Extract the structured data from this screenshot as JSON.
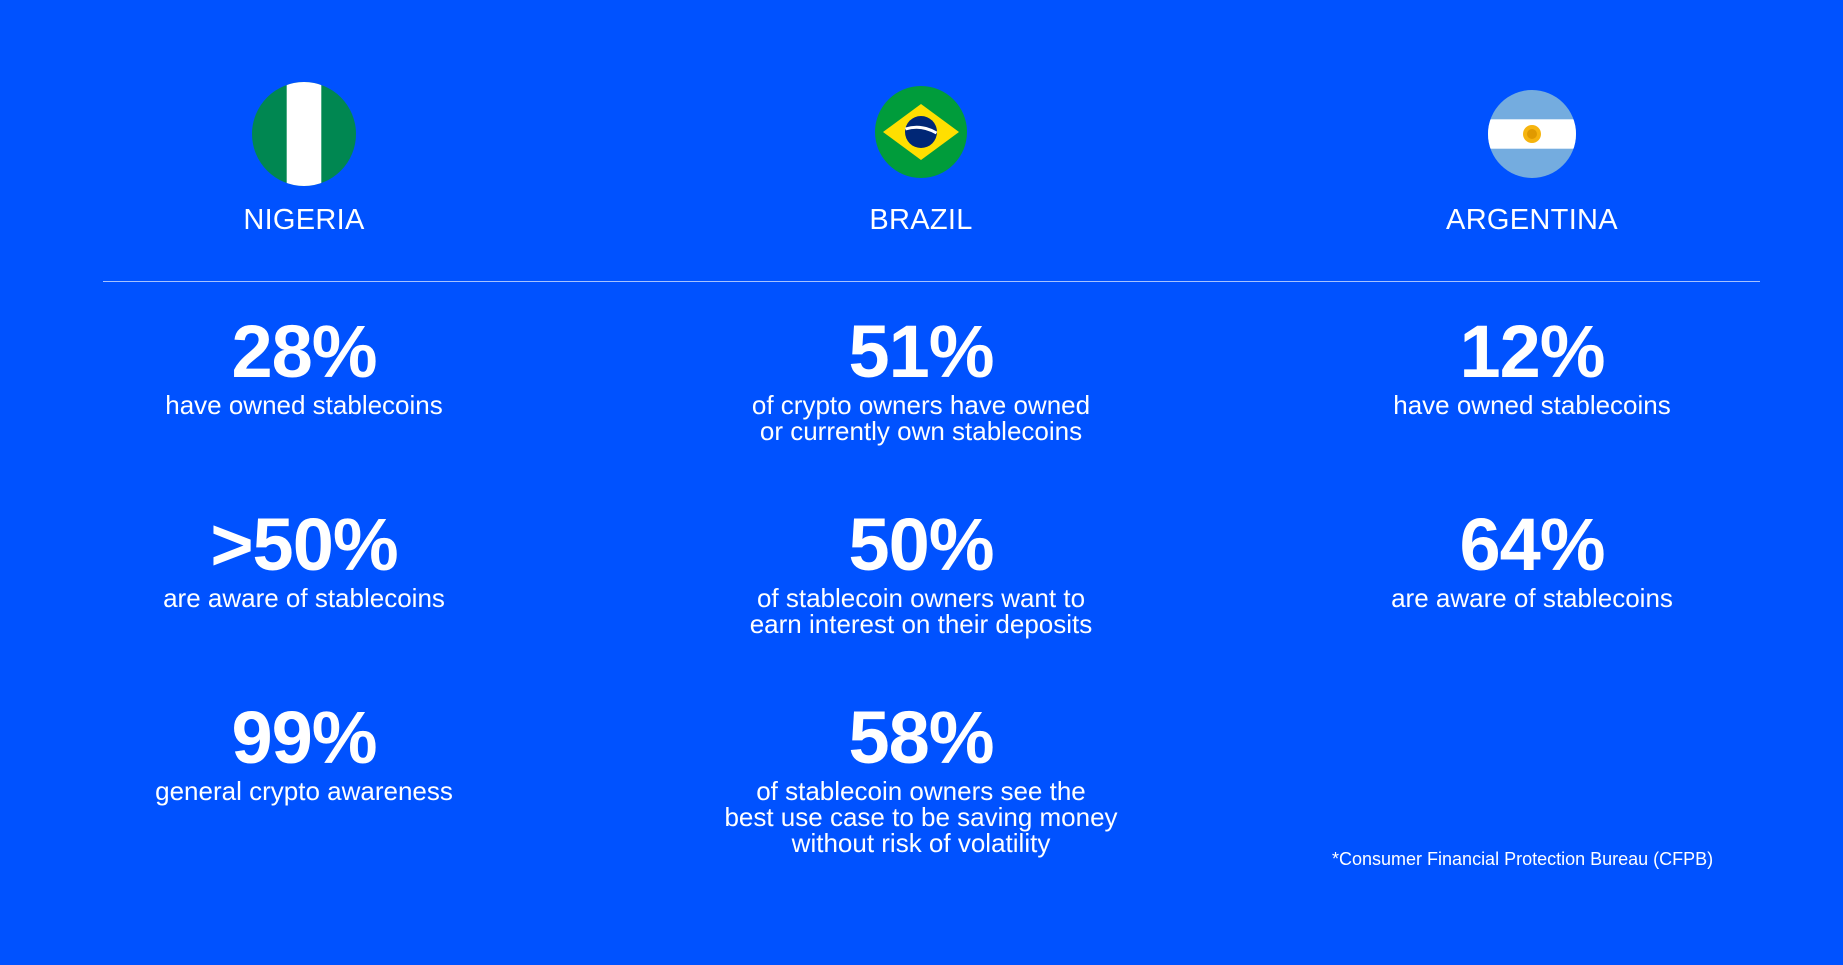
{
  "countries": [
    {
      "name": "NIGERIA",
      "flag_icon": "nigeria-flag-icon",
      "stats": [
        {
          "value": "28%",
          "description": "have owned stablecoins"
        },
        {
          "value": ">50%",
          "description": "are aware of stablecoins"
        },
        {
          "value": "99%",
          "description": "general crypto awareness"
        }
      ]
    },
    {
      "name": "BRAZIL",
      "flag_icon": "brazil-flag-icon",
      "stats": [
        {
          "value": "51%",
          "description": "of crypto owners have owned\nor currently own stablecoins"
        },
        {
          "value": "50%",
          "description": "of stablecoin owners want to\nearn interest on their deposits"
        },
        {
          "value": "58%",
          "description": "of stablecoin owners see the\nbest use case to be saving money\nwithout risk of volatility"
        }
      ]
    },
    {
      "name": "ARGENTINA",
      "flag_icon": "argentina-flag-icon",
      "stats": [
        {
          "value": "12%",
          "description": "have owned stablecoins"
        },
        {
          "value": "64%",
          "description": "are aware of stablecoins"
        }
      ]
    }
  ],
  "footnote": "*Consumer Financial Protection Bureau (CFPB)",
  "colors": {
    "background": "#0052FF",
    "text": "#FFFFFF",
    "nigeria_green": "#008751",
    "brazil_green": "#009C3B",
    "brazil_yellow": "#FFDF00",
    "brazil_blue": "#002776",
    "argentina_blue": "#74ACDF",
    "argentina_sun": "#F6B40E"
  }
}
